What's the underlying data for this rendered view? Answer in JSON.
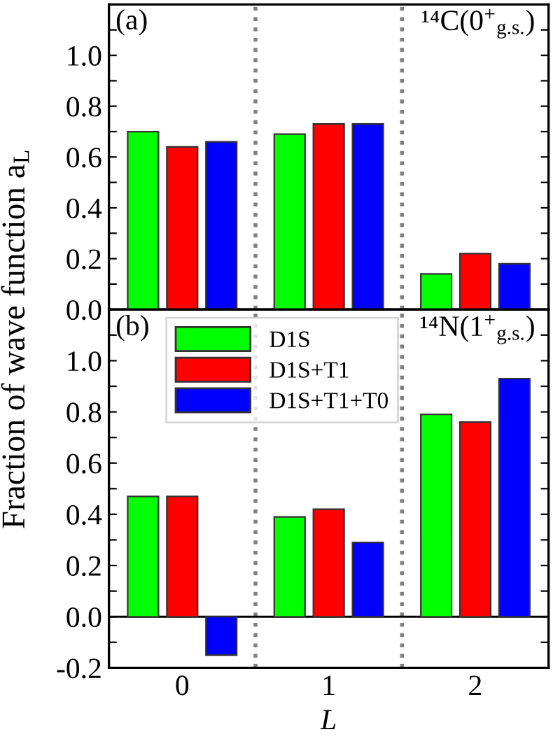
{
  "chart_data": [
    {
      "type": "bar",
      "annotations": [
        "(a)",
        "¹⁴C(0$^{+}$$_{g.s.}$)"
      ],
      "ylabel": "Fraction of wave function a$_{L}$",
      "x": [
        0,
        1,
        2
      ],
      "xlim": [
        -0.5,
        2.5
      ],
      "xticks": [
        0,
        1,
        2
      ],
      "ylim": [
        0,
        1.2
      ],
      "yticks": [
        {
          "value": 0,
          "label": "0.0"
        },
        {
          "value": 0.1,
          "label": null
        },
        0.2,
        {
          "value": 0.3,
          "label": null
        },
        0.4,
        {
          "value": 0.5,
          "label": null
        },
        0.6,
        {
          "value": 0.7,
          "label": null
        },
        0.8,
        {
          "value": 0.9,
          "label": null
        },
        {
          "value": 1,
          "label": "1.0"
        },
        {
          "value": 1.1,
          "label": null
        }
      ],
      "tick_labels": "y",
      "grid": false,
      "legend": false,
      "ref_lines": [
        {
          "axis": "x",
          "value": 0.5,
          "color": "#808080",
          "line_style": "dotted"
        },
        {
          "axis": "x",
          "value": 1.5,
          "color": "#808080",
          "line_style": "dotted"
        }
      ],
      "series": [
        {
          "color": "#00ff00",
          "values": [
            0.7,
            0.69,
            0.14
          ]
        },
        {
          "color": "#ff0000",
          "values": [
            0.64,
            0.73,
            0.22
          ]
        },
        {
          "color": "#0000ff",
          "values": [
            0.66,
            0.73,
            0.18
          ]
        }
      ]
    },
    {
      "type": "bar",
      "annotations": [
        "(b)",
        "¹⁴N(1$^{+}$$_{g.s.}$)"
      ],
      "xlabel": "L",
      "x": [
        0,
        1,
        2
      ],
      "xlim": [
        -0.5,
        2.5
      ],
      "xticks": [
        0,
        1,
        2
      ],
      "ylim": [
        -0.2,
        1.2
      ],
      "yticks": [
        -0.2,
        {
          "value": -0.1,
          "label": null
        },
        {
          "value": 0,
          "label": "0.0"
        },
        {
          "value": 0.1,
          "label": null
        },
        0.2,
        {
          "value": 0.3,
          "label": null
        },
        0.4,
        {
          "value": 0.5,
          "label": null
        },
        0.6,
        {
          "value": 0.7,
          "label": null
        },
        0.8,
        {
          "value": 0.9,
          "label": null
        },
        {
          "value": 1,
          "label": "1.0"
        },
        {
          "value": 1.1,
          "label": null
        }
      ],
      "grid": false,
      "legend": "top left",
      "ref_lines": [
        {
          "axis": "x",
          "value": 0.5,
          "color": "#808080",
          "line_style": "dotted"
        },
        {
          "axis": "x",
          "value": 1.5,
          "color": "#808080",
          "line_style": "dotted"
        },
        {
          "axis": "y",
          "value": 0,
          "color": "#000000",
          "line_style": "solid"
        }
      ],
      "series": [
        {
          "name": "D1S",
          "color": "#00ff00",
          "values": [
            0.47,
            0.39,
            0.79
          ]
        },
        {
          "name": "D1S+T1",
          "color": "#ff0000",
          "values": [
            0.47,
            0.42,
            0.76
          ]
        },
        {
          "name": "D1S+T1+T0",
          "color": "#0000ff",
          "values": [
            -0.15,
            0.29,
            0.93
          ]
        }
      ]
    }
  ]
}
